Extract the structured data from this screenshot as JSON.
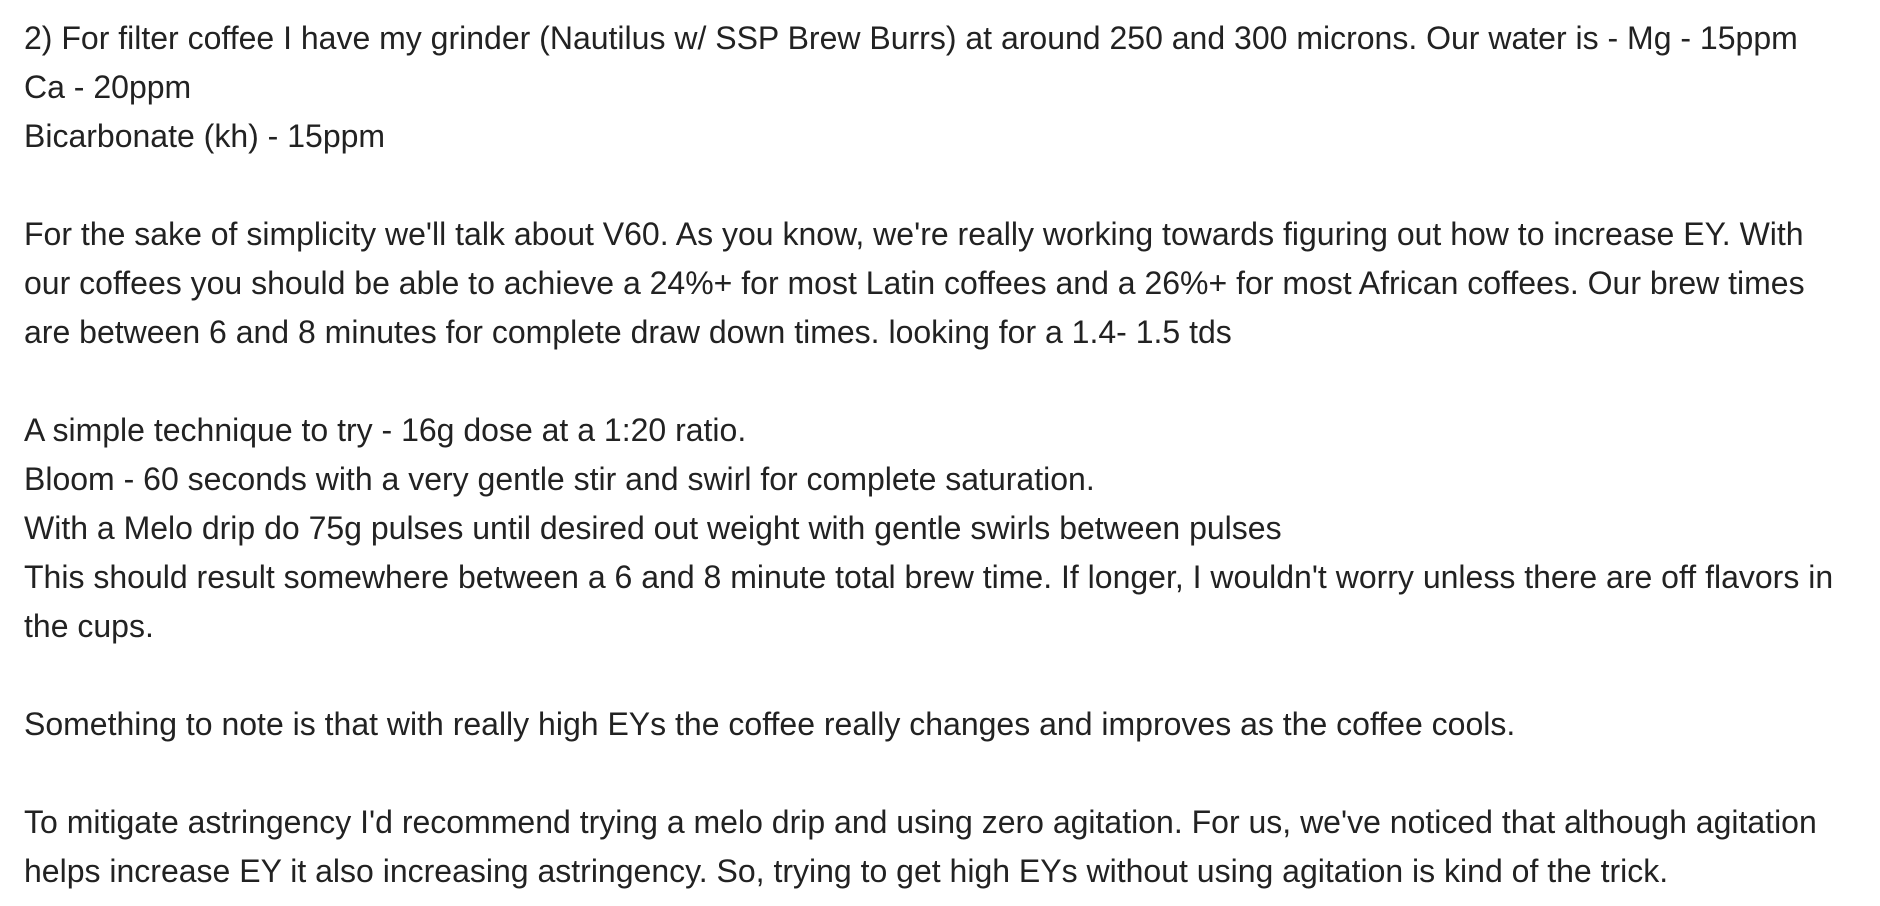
{
  "document": {
    "paragraphs": [
      {
        "lines": [
          "2) For filter coffee I have my grinder (Nautilus w/ SSP Brew Burrs) at around 250 and 300 microns. Our water is - Mg - 15ppm",
          "Ca - 20ppm",
          "Bicarbonate (kh) - 15ppm"
        ]
      },
      {
        "lines": [
          "For the sake of simplicity we'll talk about V60. As you know, we're really working towards figuring out how to increase EY. With",
          "our coffees you should be able to achieve a 24%+ for most Latin coffees and a 26%+ for most African coffees. Our brew times",
          "are between 6 and 8 minutes for complete draw down times. looking for a 1.4- 1.5 tds"
        ]
      },
      {
        "lines": [
          "A simple technique to try - 16g dose at a 1:20 ratio.",
          "Bloom - 60 seconds with a very gentle stir and swirl for complete saturation.",
          "With a Melo drip do 75g pulses until desired out weight with gentle swirls between pulses",
          "This should result somewhere between a 6 and 8 minute total brew time. If longer, I wouldn't worry unless there are off flavors in",
          "the cups."
        ]
      },
      {
        "lines": [
          "Something to note is that with really high EYs the coffee really changes and improves as the coffee cools."
        ]
      },
      {
        "lines": [
          "To mitigate astringency I'd recommend trying a melo drip and using zero agitation. For us, we've noticed that although agitation",
          "helps increase EY it also increasing astringency. So, trying to get high EYs without using agitation is kind of the trick."
        ]
      }
    ]
  }
}
